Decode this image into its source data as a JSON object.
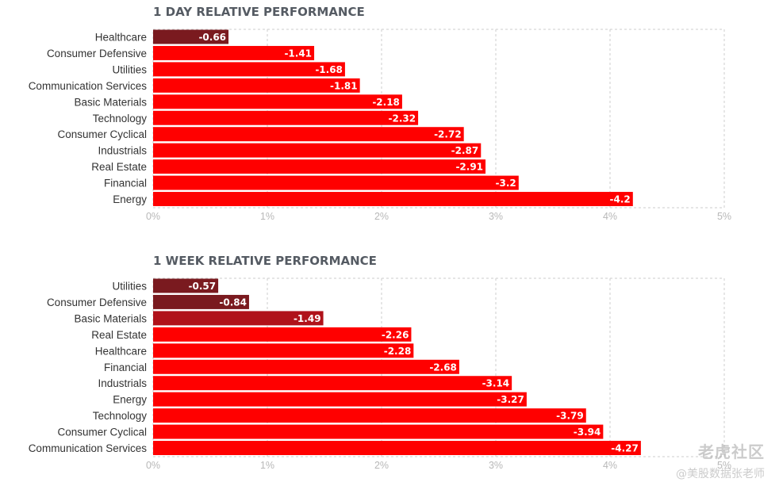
{
  "watermark": {
    "line1": "老虎社区",
    "line2": "@美股数据张老师"
  },
  "colors": {
    "positive_dark": "#7a1a1f",
    "mid": "#b0121a",
    "negative": "#ff0000",
    "grid": "#cccccc"
  },
  "chart_data": [
    {
      "type": "bar",
      "orientation": "horizontal",
      "title": "1 DAY RELATIVE PERFORMANCE",
      "categories": [
        "Healthcare",
        "Consumer Defensive",
        "Utilities",
        "Communication Services",
        "Basic Materials",
        "Technology",
        "Consumer Cyclical",
        "Industrials",
        "Real Estate",
        "Financial",
        "Energy"
      ],
      "values": [
        -0.66,
        -1.41,
        -1.68,
        -1.81,
        -2.18,
        -2.32,
        -2.72,
        -2.87,
        -2.91,
        -3.2,
        -4.2
      ],
      "value_labels": [
        "-0.66",
        "-1.41",
        "-1.68",
        "-1.81",
        "-2.18",
        "-2.32",
        "-2.72",
        "-2.87",
        "-2.91",
        "-3.2",
        "-4.2"
      ],
      "bar_colors": [
        "#7a1a1f",
        "#ff0000",
        "#ff0000",
        "#ff0000",
        "#ff0000",
        "#ff0000",
        "#ff0000",
        "#ff0000",
        "#ff0000",
        "#ff0000",
        "#ff0000"
      ],
      "xlim": [
        0,
        5
      ],
      "xticks": [
        "0%",
        "1%",
        "2%",
        "3%",
        "4%",
        "5%"
      ],
      "xlabel": "",
      "ylabel": "",
      "grid": true
    },
    {
      "type": "bar",
      "orientation": "horizontal",
      "title": "1 WEEK RELATIVE PERFORMANCE",
      "categories": [
        "Utilities",
        "Consumer Defensive",
        "Basic Materials",
        "Real Estate",
        "Healthcare",
        "Financial",
        "Industrials",
        "Energy",
        "Technology",
        "Consumer Cyclical",
        "Communication Services"
      ],
      "values": [
        -0.57,
        -0.84,
        -1.49,
        -2.26,
        -2.28,
        -2.68,
        -3.14,
        -3.27,
        -3.79,
        -3.94,
        -4.27
      ],
      "value_labels": [
        "-0.57",
        "-0.84",
        "-1.49",
        "-2.26",
        "-2.28",
        "-2.68",
        "-3.14",
        "-3.27",
        "-3.79",
        "-3.94",
        "-4.27"
      ],
      "bar_colors": [
        "#7a1a1f",
        "#7a1a1f",
        "#b0121a",
        "#ff0000",
        "#ff0000",
        "#ff0000",
        "#ff0000",
        "#ff0000",
        "#ff0000",
        "#ff0000",
        "#ff0000"
      ],
      "xlim": [
        0,
        5
      ],
      "xticks": [
        "0%",
        "1%",
        "2%",
        "3%",
        "4%",
        "5%"
      ],
      "xlabel": "",
      "ylabel": "",
      "grid": true
    }
  ]
}
